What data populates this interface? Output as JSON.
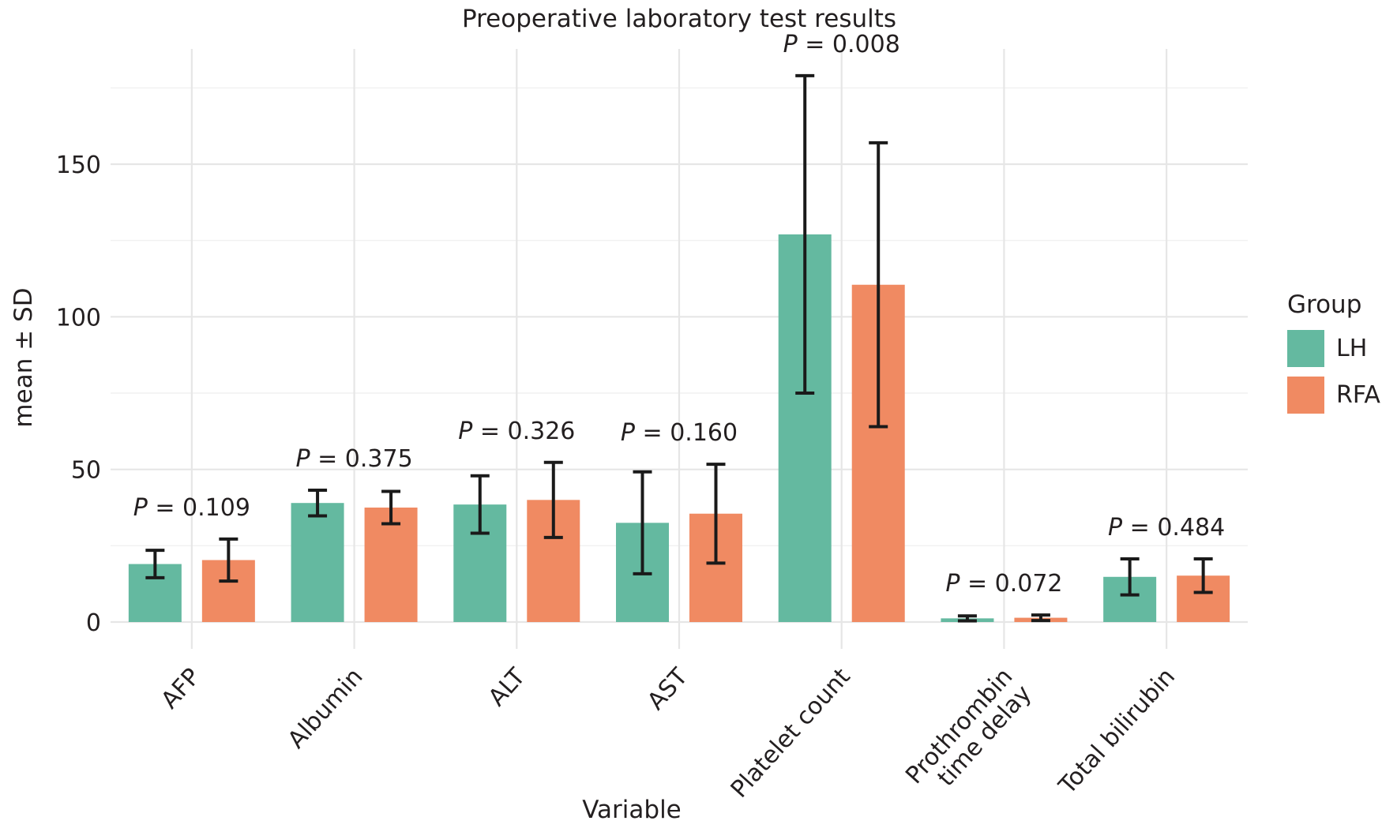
{
  "figure": {
    "title": "Preoperative laboratory test results",
    "x_axis_title": "Variable",
    "y_axis_title": "mean ± SD",
    "legend": {
      "title": "Group",
      "items": [
        {
          "label": "LH",
          "color": "#64b9a0"
        },
        {
          "label": "RFA",
          "color": "#f08a62"
        }
      ]
    }
  },
  "chart_data": {
    "type": "bar",
    "title": "Preoperative laboratory test results",
    "xlabel": "Variable",
    "ylabel": "mean ± SD",
    "legend_position": "right",
    "legend_title": "Group",
    "categories": [
      "AFP",
      "Albumin",
      "ALT",
      "AST",
      "Platelet count",
      "Prothrombin\ntime delay",
      "Total bilirubin"
    ],
    "series": [
      {
        "name": "LH",
        "color": "#64b9a0",
        "values": [
          19,
          39,
          38.5,
          32.5,
          127,
          1.2,
          14.8
        ],
        "sd": [
          4.5,
          4.2,
          9.4,
          16.7,
          52,
          0.8,
          5.9
        ]
      },
      {
        "name": "RFA",
        "color": "#f08a62",
        "values": [
          20.3,
          37.5,
          40,
          35.5,
          110.5,
          1.4,
          15.2
        ],
        "sd": [
          6.9,
          5.3,
          12.3,
          16.2,
          46.5,
          0.9,
          5.5
        ]
      }
    ],
    "p_values": [
      "0.109",
      "0.375",
      "0.326",
      "0.160",
      "0.008",
      "0.072",
      "0.484"
    ],
    "p_prefix": "P",
    "p_equals": " = ",
    "yticks": [
      0,
      50,
      100,
      150
    ],
    "ylim": [
      0,
      187.5
    ],
    "grid": {
      "h_major": [
        0,
        50,
        100,
        150
      ],
      "h_minor": [
        25,
        75,
        125,
        175
      ],
      "v_major": "group-centers"
    },
    "error_bar_color": "#1a1a1a",
    "grid_major_color": "#e6e6e6",
    "grid_minor_color": "#f1f1f1"
  }
}
